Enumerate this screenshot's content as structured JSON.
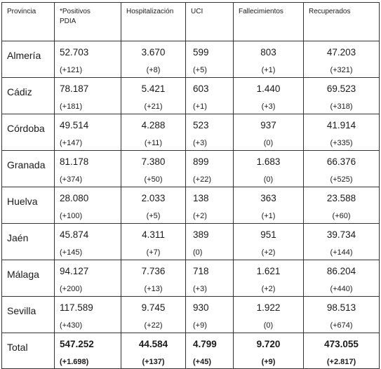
{
  "headers": [
    "Provincia",
    "*Positivos PDIA",
    "Hospitalización",
    "UCI",
    "Fallecimientos",
    "Recuperados"
  ],
  "rows": [
    {
      "provincia": "Almería",
      "cells": [
        [
          "52.703",
          "(+121)"
        ],
        [
          "3.670",
          "(+8)"
        ],
        [
          "599",
          "(+5)"
        ],
        [
          "803",
          "(+1)"
        ],
        [
          "47.203",
          "(+321)"
        ]
      ]
    },
    {
      "provincia": "Cádiz",
      "cells": [
        [
          "78.187",
          "(+181)"
        ],
        [
          "5.421",
          "(+21)"
        ],
        [
          "603",
          "(+1)"
        ],
        [
          "1.440",
          "(+3)"
        ],
        [
          "69.523",
          "(+318)"
        ]
      ]
    },
    {
      "provincia": "Córdoba",
      "cells": [
        [
          "49.514",
          "(+147)"
        ],
        [
          "4.288",
          "(+11)"
        ],
        [
          "523",
          "(+3)"
        ],
        [
          "937",
          "(0)"
        ],
        [
          "41.914",
          "(+335)"
        ]
      ]
    },
    {
      "provincia": "Granada",
      "cells": [
        [
          "81.178",
          "(+374)"
        ],
        [
          "7.380",
          "(+50)"
        ],
        [
          "899",
          "(+22)"
        ],
        [
          "1.683",
          "(0)"
        ],
        [
          "66.376",
          "(+525)"
        ]
      ]
    },
    {
      "provincia": "Huelva",
      "cells": [
        [
          "28.080",
          "(+100)"
        ],
        [
          "2.033",
          "(+5)"
        ],
        [
          "138",
          "(+2)"
        ],
        [
          "363",
          "(+1)"
        ],
        [
          "23.588",
          "(+60)"
        ]
      ]
    },
    {
      "provincia": "Jaén",
      "cells": [
        [
          "45.874",
          "(+145)"
        ],
        [
          "4.311",
          "(+7)"
        ],
        [
          "389",
          "(0)"
        ],
        [
          "951",
          "(+2)"
        ],
        [
          "39.734",
          "(+144)"
        ]
      ]
    },
    {
      "provincia": "Málaga",
      "cells": [
        [
          "94.127",
          "(+200)"
        ],
        [
          "7.736",
          "(+13)"
        ],
        [
          "718",
          "(+3)"
        ],
        [
          "1.621",
          "(+2)"
        ],
        [
          "86.204",
          "(+440)"
        ]
      ]
    },
    {
      "provincia": "Sevilla",
      "cells": [
        [
          "117.589",
          "(+430)"
        ],
        [
          "9.745",
          "(+22)"
        ],
        [
          "930",
          "(+9)"
        ],
        [
          "1.922",
          "(0)"
        ],
        [
          "98.513",
          "(+674)"
        ]
      ]
    }
  ],
  "total": {
    "label": "Total",
    "cells": [
      [
        "547.252",
        "(+1.698)"
      ],
      [
        "44.584",
        "(+137)"
      ],
      [
        "4.799",
        "(+45)"
      ],
      [
        "9.720",
        "(+9)"
      ],
      [
        "473.055",
        "(+2.817)"
      ]
    ]
  }
}
